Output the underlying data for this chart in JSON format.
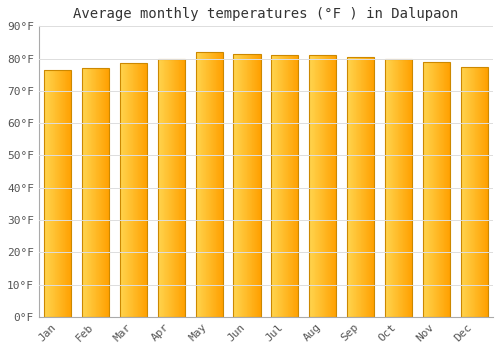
{
  "title": "Average monthly temperatures (°F ) in Dalupaon",
  "months": [
    "Jan",
    "Feb",
    "Mar",
    "Apr",
    "May",
    "Jun",
    "Jul",
    "Aug",
    "Sep",
    "Oct",
    "Nov",
    "Dec"
  ],
  "temperatures": [
    76.5,
    77.0,
    78.5,
    80.0,
    82.0,
    81.5,
    81.0,
    81.0,
    80.5,
    80.0,
    79.0,
    77.5
  ],
  "ylim": [
    0,
    90
  ],
  "yticks": [
    0,
    10,
    20,
    30,
    40,
    50,
    60,
    70,
    80,
    90
  ],
  "ytick_labels": [
    "0°F",
    "10°F",
    "20°F",
    "30°F",
    "40°F",
    "50°F",
    "60°F",
    "70°F",
    "80°F",
    "90°F"
  ],
  "bar_color_left": "#FFD54F",
  "bar_color_right": "#FFA000",
  "bar_edge_color": "#CC8800",
  "background_color": "#FFFFFF",
  "plot_bg_color": "#FFFFFF",
  "grid_color": "#DDDDDD",
  "title_fontsize": 10,
  "tick_fontsize": 8,
  "font_family": "monospace"
}
